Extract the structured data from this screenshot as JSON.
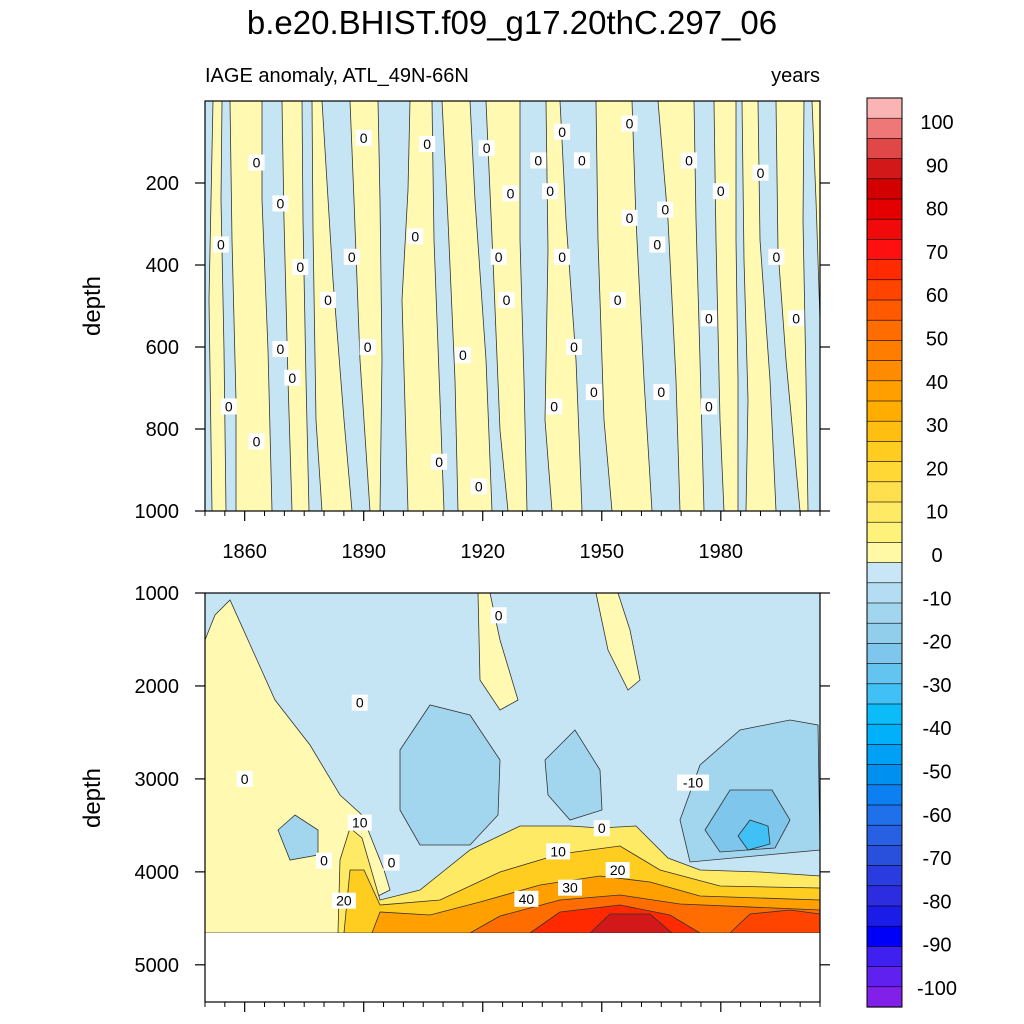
{
  "chart_data": {
    "type": "heatmap",
    "title": "b.e20.BHIST.f09_g17.20thC.297_06",
    "variable_label": "IAGE anomaly, ATL_49N-66N",
    "units_label": "years",
    "ylabel": "depth",
    "x_range": [
      1850,
      2005
    ],
    "x_ticks": [
      1860,
      1890,
      1920,
      1950,
      1980
    ],
    "upper_panel": {
      "ylim": [
        0,
        1000
      ],
      "y_ticks": [
        200,
        400,
        600,
        800,
        1000
      ],
      "contour_labels": [
        {
          "text": "0",
          "x": 1854,
          "y": 350
        },
        {
          "text": "0",
          "x": 1863,
          "y": 150
        },
        {
          "text": "0",
          "x": 1869,
          "y": 250
        },
        {
          "text": "0",
          "x": 1856,
          "y": 745
        },
        {
          "text": "0",
          "x": 1863,
          "y": 830
        },
        {
          "text": "0",
          "x": 1869,
          "y": 605
        },
        {
          "text": "0",
          "x": 1872,
          "y": 675
        },
        {
          "text": "0",
          "x": 1874,
          "y": 405
        },
        {
          "text": "0",
          "x": 1881,
          "y": 485
        },
        {
          "text": "0",
          "x": 1890,
          "y": 90
        },
        {
          "text": "0",
          "x": 1887,
          "y": 380
        },
        {
          "text": "0",
          "x": 1891,
          "y": 600
        },
        {
          "text": "0",
          "x": 1906,
          "y": 105
        },
        {
          "text": "0",
          "x": 1903,
          "y": 330
        },
        {
          "text": "0",
          "x": 1909,
          "y": 880
        },
        {
          "text": "0",
          "x": 1915,
          "y": 620
        },
        {
          "text": "0",
          "x": 1921,
          "y": 115
        },
        {
          "text": "0",
          "x": 1924,
          "y": 380
        },
        {
          "text": "0",
          "x": 1927,
          "y": 225
        },
        {
          "text": "0",
          "x": 1926,
          "y": 485
        },
        {
          "text": "0",
          "x": 1919,
          "y": 940
        },
        {
          "text": "0",
          "x": 1934,
          "y": 145
        },
        {
          "text": "0",
          "x": 1937,
          "y": 220
        },
        {
          "text": "0",
          "x": 1940,
          "y": 380
        },
        {
          "text": "0",
          "x": 1940,
          "y": 75
        },
        {
          "text": "0",
          "x": 1938,
          "y": 745
        },
        {
          "text": "0",
          "x": 1945,
          "y": 145
        },
        {
          "text": "0",
          "x": 1943,
          "y": 600
        },
        {
          "text": "0",
          "x": 1948,
          "y": 710
        },
        {
          "text": "0",
          "x": 1954,
          "y": 485
        },
        {
          "text": "0",
          "x": 1957,
          "y": 285
        },
        {
          "text": "0",
          "x": 1957,
          "y": 55
        },
        {
          "text": "0",
          "x": 1964,
          "y": 350
        },
        {
          "text": "0",
          "x": 1966,
          "y": 265
        },
        {
          "text": "0",
          "x": 1965,
          "y": 710
        },
        {
          "text": "0",
          "x": 1972,
          "y": 145
        },
        {
          "text": "0",
          "x": 1977,
          "y": 530
        },
        {
          "text": "0",
          "x": 1977,
          "y": 745
        },
        {
          "text": "0",
          "x": 1980,
          "y": 220
        },
        {
          "text": "0",
          "x": 1990,
          "y": 175
        },
        {
          "text": "0",
          "x": 1994,
          "y": 380
        },
        {
          "text": "0",
          "x": 1999,
          "y": 530
        }
      ]
    },
    "lower_panel": {
      "ylim": [
        1000,
        5400
      ],
      "y_ticks": [
        1000,
        2000,
        3000,
        4000,
        5000
      ],
      "no_data_below": 4630,
      "contour_labels": [
        {
          "text": "0",
          "x": 1924,
          "y": 1240
        },
        {
          "text": "0",
          "x": 1889,
          "y": 2180
        },
        {
          "text": "0",
          "x": 1860,
          "y": 3000
        },
        {
          "text": "-10",
          "x": 1973,
          "y": 3040
        },
        {
          "text": "10",
          "x": 1889,
          "y": 3470
        },
        {
          "text": "0",
          "x": 1950,
          "y": 3530
        },
        {
          "text": "0",
          "x": 1880,
          "y": 3880
        },
        {
          "text": "0",
          "x": 1897,
          "y": 3900
        },
        {
          "text": "10",
          "x": 1939,
          "y": 3780
        },
        {
          "text": "20",
          "x": 1954,
          "y": 3980
        },
        {
          "text": "30",
          "x": 1942,
          "y": 4170
        },
        {
          "text": "40",
          "x": 1931,
          "y": 4290
        },
        {
          "text": "20",
          "x": 1885,
          "y": 4310
        }
      ]
    },
    "colorbar": {
      "labels": [
        "100",
        "90",
        "80",
        "70",
        "60",
        "50",
        "40",
        "30",
        "20",
        "10",
        "0",
        "-10",
        "-20",
        "-30",
        "-40",
        "-50",
        "-60",
        "-70",
        "-80",
        "-90",
        "-100"
      ],
      "colors": [
        "#fab4b4",
        "#ee7878",
        "#e04848",
        "#d21818",
        "#d20000",
        "#e40000",
        "#f00a0a",
        "#ff1010",
        "#ff2a00",
        "#ff4400",
        "#ff5a00",
        "#ff6c00",
        "#ff7e00",
        "#ff8c00",
        "#ffa000",
        "#ffae00",
        "#ffbe10",
        "#ffcc20",
        "#ffd836",
        "#ffe04c",
        "#ffea66",
        "#fff27a",
        "#fff8a4",
        "#c8e6f6",
        "#b4dcf2",
        "#a2d6ee",
        "#90ceec",
        "#7ec6ec",
        "#64c4f0",
        "#40c0f4",
        "#0cbcf8",
        "#00b0f8",
        "#00a0f4",
        "#0090f0",
        "#0c80f0",
        "#2070ec",
        "#2860e4",
        "#2850dc",
        "#2a3ce0",
        "#2c2ce0",
        "#1c1ce8",
        "#0000f8",
        "#4020f0",
        "#6020f0",
        "#8020e8"
      ]
    }
  }
}
